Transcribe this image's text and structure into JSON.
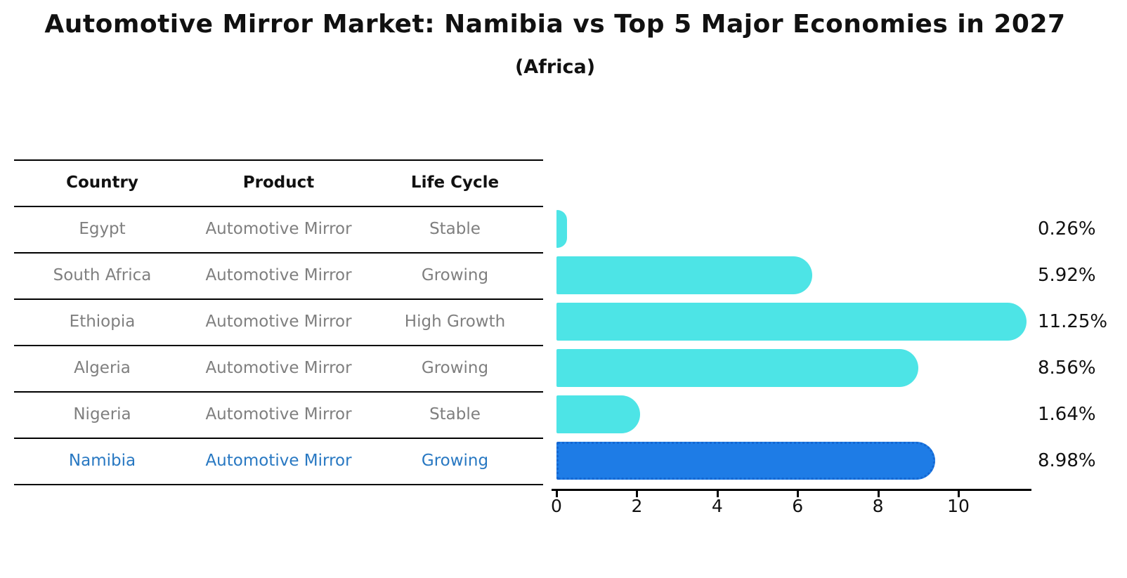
{
  "title": "Automotive Mirror Market: Namibia vs Top 5 Major Economies in 2027",
  "subtitle": "(Africa)",
  "table": {
    "headers": [
      "Country",
      "Product",
      "Life Cycle"
    ],
    "rows": [
      {
        "country": "Egypt",
        "product": "Automotive Mirror",
        "life_cycle": "Stable",
        "highlight": false
      },
      {
        "country": "South Africa",
        "product": "Automotive Mirror",
        "life_cycle": "Growing",
        "highlight": false
      },
      {
        "country": "Ethiopia",
        "product": "Automotive Mirror",
        "life_cycle": "High Growth",
        "highlight": false
      },
      {
        "country": "Algeria",
        "product": "Automotive Mirror",
        "life_cycle": "Growing",
        "highlight": false
      },
      {
        "country": "Nigeria",
        "product": "Automotive Mirror",
        "life_cycle": "Stable",
        "highlight": false
      },
      {
        "country": "Namibia",
        "product": "Automotive Mirror",
        "life_cycle": "Growing",
        "highlight": true
      }
    ]
  },
  "chart_data": {
    "type": "bar",
    "orientation": "horizontal",
    "title": "Automotive Mirror Market: Namibia vs Top 5 Major Economies in 2027",
    "subtitle": "(Africa)",
    "categories": [
      "Egypt",
      "South Africa",
      "Ethiopia",
      "Algeria",
      "Nigeria",
      "Namibia"
    ],
    "values": [
      0.26,
      5.92,
      11.25,
      8.56,
      1.64,
      8.98
    ],
    "value_labels": [
      "0.26%",
      "5.92%",
      "11.25%",
      "8.56%",
      "1.64%",
      "8.98%"
    ],
    "xlabel": "",
    "ylabel": "",
    "xlim": [
      0,
      11.8
    ],
    "xticks": [
      0,
      2,
      4,
      6,
      8,
      10
    ],
    "grid": false,
    "legend": false,
    "highlight_category": "Namibia",
    "colors": {
      "bar": "#4DE4E6",
      "highlight_bar": "#1E7CE6",
      "highlight_border": "#1467D2",
      "highlight_text": "#2878C2",
      "row_text": "#7F7F7F",
      "axis": "#000000"
    }
  }
}
